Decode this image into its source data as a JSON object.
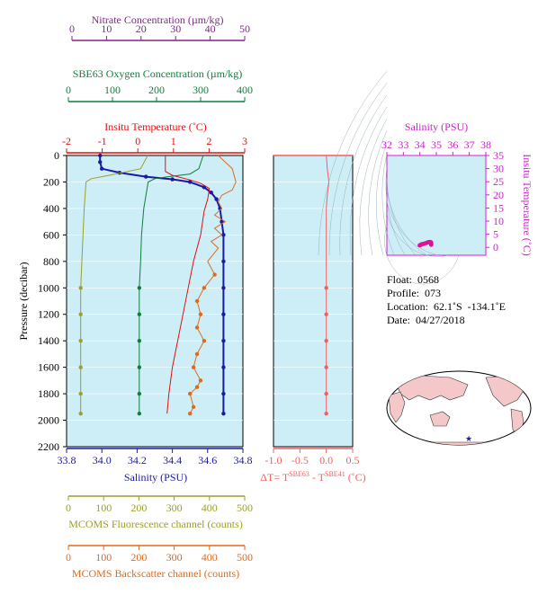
{
  "axes": {
    "nitrate": {
      "label": "Nitrate Concentration (µm/kg)",
      "ticks": [
        "0",
        "10",
        "20",
        "30",
        "40",
        "50"
      ],
      "color": "#7b2a83"
    },
    "oxygen": {
      "label": "SBE63 Oxygen Concentration (µm/kg)",
      "ticks": [
        "0",
        "100",
        "200",
        "300",
        "400"
      ],
      "color": "#0f7f3a"
    },
    "temperature": {
      "label": "Insitu Temperature (˚C)",
      "ticks": [
        "-2",
        "-1",
        "0",
        "1",
        "2",
        "3"
      ],
      "color": "#e01010"
    },
    "pressure": {
      "label": "Pressure (decibar)",
      "ticks": [
        "0",
        "200",
        "400",
        "600",
        "800",
        "1000",
        "1200",
        "1400",
        "1600",
        "1800",
        "2000",
        "2200"
      ]
    },
    "salinity": {
      "label": "Salinity (PSU)",
      "ticks": [
        "33.8",
        "34.0",
        "34.2",
        "34.4",
        "34.6",
        "34.8"
      ],
      "color": "#1a1aa8"
    },
    "deltaT": {
      "label_prefix": "ΔT= T",
      "sup1": "SBE63",
      "label_mid": " - T",
      "sup2": "SBE41",
      "label_suffix": " (˚C)",
      "ticks": [
        "-1.0",
        "-0.5",
        "0.0",
        "0.5"
      ],
      "color": "#f06060"
    },
    "fluorescence": {
      "label": "MCOMS Fluorescence channel (counts)",
      "ticks": [
        "0",
        "100",
        "200",
        "300",
        "400",
        "500"
      ],
      "color": "#9aa02a"
    },
    "backscatter": {
      "label": "MCOMS Backscatter channel (counts)",
      "ticks": [
        "0",
        "100",
        "200",
        "300",
        "400",
        "500"
      ],
      "color": "#e06a1a"
    },
    "ts_salinity": {
      "label": "Salinity (PSU)",
      "ticks": [
        "32",
        "33",
        "34",
        "35",
        "36",
        "37",
        "38"
      ],
      "color": "#cc22cc"
    },
    "ts_temperature": {
      "label": "Insitu Temperature (˚C)",
      "ticks": [
        "0",
        "5",
        "10",
        "15",
        "20",
        "25",
        "30",
        "35"
      ],
      "color": "#cc22cc"
    }
  },
  "info": {
    "float": "Float:  0568",
    "profile": "Profile:  073",
    "location": "Location:  62.1˚S  -134.1˚E",
    "date": "Date:  04/27/2018"
  },
  "colors": {
    "plot_bg": "#cdeef7",
    "ts_marker": "#e0109a",
    "map_land": "#f4c8c8",
    "map_ocean": "#ffffff"
  },
  "chart_data": {
    "type": "line",
    "y_axis": {
      "name": "pressure",
      "range": [
        0,
        2200
      ],
      "reversed": true
    },
    "series": [
      {
        "name": "Salinity",
        "axis": "salinity",
        "range": [
          33.8,
          34.8
        ],
        "color": "#1a1aa8",
        "markers": true,
        "points": [
          [
            33.99,
            0
          ],
          [
            33.99,
            50
          ],
          [
            34.0,
            100
          ],
          [
            34.1,
            130
          ],
          [
            34.25,
            160
          ],
          [
            34.4,
            180
          ],
          [
            34.5,
            200
          ],
          [
            34.58,
            240
          ],
          [
            34.62,
            280
          ],
          [
            34.65,
            330
          ],
          [
            34.67,
            400
          ],
          [
            34.68,
            500
          ],
          [
            34.69,
            600
          ],
          [
            34.69,
            800
          ],
          [
            34.69,
            1000
          ],
          [
            34.69,
            1200
          ],
          [
            34.69,
            1400
          ],
          [
            34.69,
            1600
          ],
          [
            34.69,
            1800
          ],
          [
            34.69,
            1950
          ]
        ]
      },
      {
        "name": "Temperature",
        "axis": "temperature",
        "range": [
          -2,
          3
        ],
        "color": "#e01010",
        "markers": false,
        "points": [
          [
            0.8,
            0
          ],
          [
            0.8,
            50
          ],
          [
            0.8,
            120
          ],
          [
            1.0,
            150
          ],
          [
            1.5,
            185
          ],
          [
            1.8,
            210
          ],
          [
            2.05,
            250
          ],
          [
            2.0,
            330
          ],
          [
            1.9,
            420
          ],
          [
            1.8,
            600
          ],
          [
            1.6,
            800
          ],
          [
            1.45,
            1000
          ],
          [
            1.3,
            1200
          ],
          [
            1.15,
            1400
          ],
          [
            1.0,
            1600
          ],
          [
            0.9,
            1800
          ],
          [
            0.85,
            1950
          ]
        ]
      },
      {
        "name": "Oxygen",
        "axis": "oxygen",
        "range": [
          0,
          400
        ],
        "color": "#0f7f3a",
        "markers": true,
        "points": [
          [
            310,
            0
          ],
          [
            305,
            50
          ],
          [
            300,
            100
          ],
          [
            280,
            140
          ],
          [
            230,
            160
          ],
          [
            200,
            175
          ],
          [
            185,
            200
          ],
          [
            175,
            400
          ],
          [
            170,
            600
          ],
          [
            168,
            800
          ],
          [
            165,
            1000
          ],
          [
            165,
            1200
          ],
          [
            165,
            1400
          ],
          [
            165,
            1600
          ],
          [
            165,
            1800
          ],
          [
            165,
            1950
          ]
        ]
      },
      {
        "name": "Fluorescence",
        "axis": "fluorescence",
        "range": [
          0,
          500
        ],
        "color": "#9aa02a",
        "markers": true,
        "points": [
          [
            230,
            0
          ],
          [
            210,
            100
          ],
          [
            120,
            150
          ],
          [
            70,
            175
          ],
          [
            55,
            200
          ],
          [
            50,
            400
          ],
          [
            45,
            700
          ],
          [
            40,
            1000
          ],
          [
            40,
            1200
          ],
          [
            40,
            1400
          ],
          [
            40,
            1600
          ],
          [
            40,
            1800
          ],
          [
            40,
            1950
          ]
        ]
      },
      {
        "name": "Backscatter",
        "axis": "backscatter",
        "range": [
          0,
          500
        ],
        "color": "#e06a1a",
        "markers": true,
        "points": [
          [
            430,
            0
          ],
          [
            470,
            100
          ],
          [
            480,
            200
          ],
          [
            470,
            260
          ],
          [
            440,
            300
          ],
          [
            430,
            350
          ],
          [
            440,
            400
          ],
          [
            420,
            450
          ],
          [
            450,
            500
          ],
          [
            420,
            550
          ],
          [
            440,
            600
          ],
          [
            410,
            650
          ],
          [
            430,
            700
          ],
          [
            400,
            800
          ],
          [
            420,
            900
          ],
          [
            390,
            1000
          ],
          [
            370,
            1100
          ],
          [
            380,
            1200
          ],
          [
            370,
            1300
          ],
          [
            390,
            1400
          ],
          [
            370,
            1500
          ],
          [
            360,
            1600
          ],
          [
            380,
            1700
          ],
          [
            370,
            1750
          ],
          [
            350,
            1800
          ],
          [
            360,
            1900
          ],
          [
            350,
            1950
          ]
        ]
      },
      {
        "name": "DeltaT",
        "axis": "deltaT",
        "range": [
          -1.0,
          0.5
        ],
        "color": "#f06060",
        "markers": true,
        "points": [
          [
            0.0,
            0
          ],
          [
            0.02,
            100
          ],
          [
            0.05,
            200
          ],
          [
            0.02,
            300
          ],
          [
            0.0,
            400
          ],
          [
            0.0,
            600
          ],
          [
            0.0,
            800
          ],
          [
            0.0,
            1000
          ],
          [
            0.0,
            1200
          ],
          [
            0.0,
            1400
          ],
          [
            0.0,
            1600
          ],
          [
            0.0,
            1800
          ],
          [
            0.0,
            1950
          ]
        ]
      }
    ],
    "ts_diagram": {
      "salinity_range": [
        32,
        38
      ],
      "temperature_range": [
        -3,
        35
      ],
      "points": [
        [
          33.99,
          0.8
        ],
        [
          34.05,
          0.9
        ],
        [
          34.2,
          1.3
        ],
        [
          34.4,
          1.7
        ],
        [
          34.55,
          2.0
        ],
        [
          34.62,
          2.05
        ],
        [
          34.68,
          1.9
        ],
        [
          34.69,
          1.5
        ],
        [
          34.69,
          1.0
        ],
        [
          34.1,
          1.2
        ],
        [
          34.3,
          1.5
        ],
        [
          34.5,
          1.95
        ]
      ]
    },
    "map": {
      "float_marker_color": "#1a1ad0"
    }
  }
}
